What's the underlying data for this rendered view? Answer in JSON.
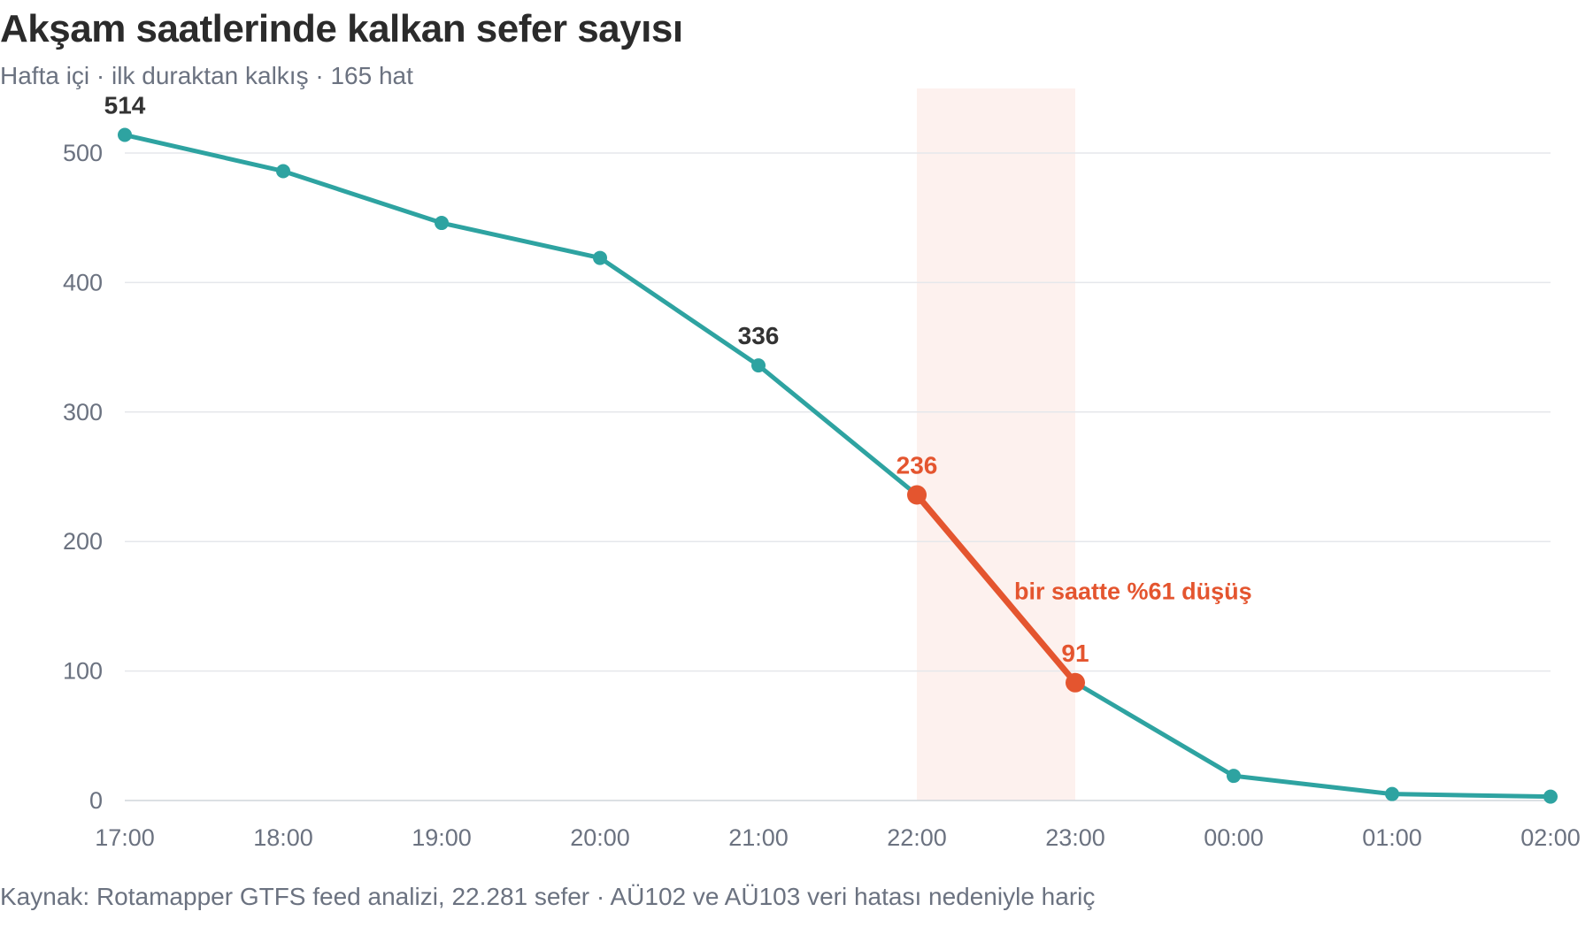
{
  "header": {
    "title": "Akşam saatlerinde kalkan sefer sayısı",
    "subtitle": "Hafta içi · ilk duraktan kalkış · 165 hat"
  },
  "footer": {
    "source": "Kaynak: Rotamapper GTFS feed analizi, 22.281 sefer · AÜ102 ve AÜ103 veri hatası nedeniyle hariç"
  },
  "chart_data": {
    "type": "line",
    "title": "Akşam saatlerinde kalkan sefer sayısı",
    "subtitle": "Hafta içi · ilk duraktan kalkış · 165 hat",
    "x": [
      "17:00",
      "18:00",
      "19:00",
      "20:00",
      "21:00",
      "22:00",
      "23:00",
      "00:00",
      "01:00",
      "02:00"
    ],
    "series": [
      {
        "values": [
          514,
          486,
          446,
          419,
          336,
          236,
          91,
          19,
          5,
          3
        ],
        "color": "#2ea3a1"
      }
    ],
    "xlabel": "",
    "ylabel": "",
    "ylim": [
      0,
      550
    ],
    "yticks": [
      0,
      100,
      200,
      300,
      400,
      500
    ],
    "grid": true,
    "legend": "none",
    "value_labels": [
      {
        "x": "17:00",
        "value": 514,
        "text": "514"
      },
      {
        "x": "21:00",
        "value": 336,
        "text": "336"
      },
      {
        "x": "22:00",
        "value": 236,
        "text": "236"
      },
      {
        "x": "23:00",
        "value": 91,
        "text": "91"
      }
    ],
    "highlight": {
      "band_from": "22:00",
      "band_to": "23:00",
      "band_color": "#fdf1ee",
      "line_color": "#e4552f",
      "annotation": "bir saatte %61 düşüş"
    },
    "colors": {
      "line": "#2ea3a1",
      "highlight": "#e4552f",
      "label": "#333333",
      "grid": "#e5e7eb",
      "axis": "#d1d5db"
    }
  }
}
